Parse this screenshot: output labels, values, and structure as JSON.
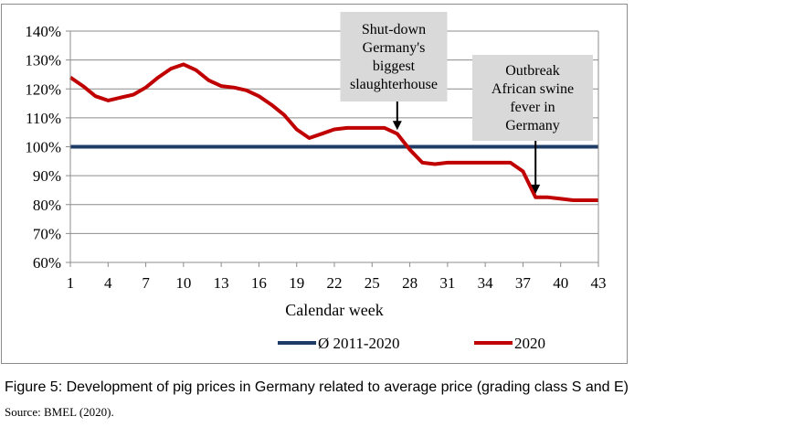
{
  "chart_data": {
    "type": "line",
    "xlabel": "Calendar week",
    "ylabel": "",
    "ylim": [
      60,
      140
    ],
    "xlim": [
      1,
      43
    ],
    "x_ticks": [
      1,
      4,
      7,
      10,
      13,
      16,
      19,
      22,
      25,
      28,
      31,
      34,
      37,
      40,
      43
    ],
    "y_ticks": [
      60,
      70,
      80,
      90,
      100,
      110,
      120,
      130,
      140
    ],
    "y_tick_labels": [
      "60%",
      "70%",
      "80%",
      "90%",
      "100%",
      "110%",
      "120%",
      "130%",
      "140%"
    ],
    "grid": "horizontal",
    "legend_position": "bottom",
    "series": [
      {
        "name": "Ø 2011-2020",
        "color": "#1f3c66",
        "x": [
          1,
          43
        ],
        "values": [
          100,
          100
        ]
      },
      {
        "name": "2020",
        "color": "#c00000",
        "x": [
          1,
          2,
          3,
          4,
          5,
          6,
          7,
          8,
          9,
          10,
          11,
          12,
          13,
          14,
          15,
          16,
          17,
          18,
          19,
          20,
          21,
          22,
          23,
          24,
          25,
          26,
          27,
          28,
          29,
          30,
          31,
          32,
          33,
          34,
          35,
          36,
          37,
          38,
          39,
          40,
          41,
          42,
          43
        ],
        "values": [
          124,
          121,
          117.5,
          116,
          117,
          118,
          120.5,
          124,
          127,
          128.5,
          126.5,
          123,
          121,
          120.5,
          119.5,
          117.5,
          114.5,
          111,
          106,
          103,
          104.5,
          106,
          106.5,
          106.5,
          106.5,
          106.5,
          104.5,
          99,
          94.5,
          94,
          94.5,
          94.5,
          94.5,
          94.5,
          94.5,
          94.5,
          91.5,
          82.5,
          82.5,
          82,
          81.5,
          81.5,
          81.5
        ]
      }
    ],
    "annotations": [
      {
        "lines": [
          "Shut-down",
          "Germany's",
          "biggest",
          "slaughterhouse"
        ],
        "x": 27,
        "y": 104.5
      },
      {
        "lines": [
          "Outbreak",
          "African swine",
          "fever in",
          "Germany"
        ],
        "x": 38,
        "y": 82.5
      }
    ]
  },
  "caption": "Figure 5: Development of pig prices in Germany related to average price (grading class S and E)",
  "source": "Source: BMEL (2020)."
}
